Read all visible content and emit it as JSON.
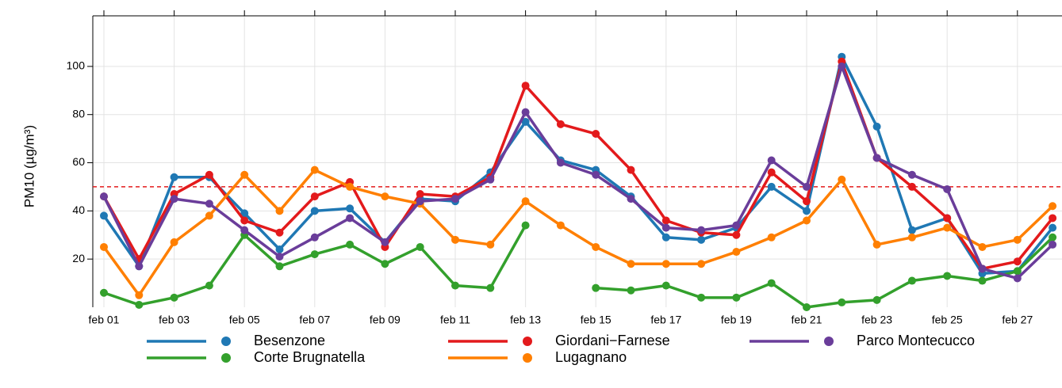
{
  "chart_data": {
    "type": "line",
    "y_label": "PM10 (µg/m³)",
    "categories": [
      "feb 01",
      null,
      "feb 03",
      null,
      "feb 05",
      null,
      "feb 07",
      null,
      "feb 09",
      null,
      "feb 11",
      null,
      "feb 13",
      null,
      "feb 15",
      null,
      "feb 17",
      null,
      "feb 19",
      null,
      "feb 21",
      null,
      "feb 23",
      null,
      "feb 25",
      null,
      "feb 27",
      null
    ],
    "series": [
      {
        "name": "Besenzone",
        "color": "#1f78b4",
        "values": [
          38,
          17,
          54,
          54,
          39,
          24,
          40,
          41,
          27,
          45,
          44,
          56,
          77,
          61,
          57,
          46,
          29,
          28,
          33,
          50,
          40,
          104,
          75,
          32,
          37,
          14,
          15,
          33
        ]
      },
      {
        "name": "Corte Brugnatella",
        "color": "#33a02c",
        "values": [
          6,
          1,
          4,
          9,
          30,
          17,
          22,
          26,
          18,
          25,
          9,
          8,
          34,
          null,
          8,
          7,
          9,
          4,
          4,
          10,
          0,
          2,
          3,
          11,
          13,
          11,
          15,
          29
        ]
      },
      {
        "name": "Giordani−Farnese",
        "color": "#e31a1c",
        "values": [
          46,
          20,
          47,
          55,
          36,
          31,
          46,
          52,
          25,
          47,
          46,
          54,
          92,
          76,
          72,
          57,
          36,
          31,
          30,
          56,
          44,
          102,
          62,
          50,
          37,
          16,
          19,
          37
        ]
      },
      {
        "name": "Lugagnano",
        "color": "#ff7f00",
        "values": [
          25,
          5,
          27,
          38,
          55,
          40,
          57,
          50,
          46,
          43,
          28,
          26,
          44,
          34,
          25,
          18,
          18,
          18,
          23,
          29,
          36,
          53,
          26,
          29,
          33,
          25,
          28,
          42
        ]
      },
      {
        "name": "Parco Montecucco",
        "color": "#6a3d9a",
        "values": [
          46,
          17,
          45,
          43,
          32,
          21,
          29,
          37,
          27,
          44,
          45,
          53,
          81,
          60,
          55,
          45,
          33,
          32,
          34,
          61,
          50,
          100,
          62,
          55,
          49,
          16,
          12,
          26
        ]
      }
    ],
    "threshold": {
      "value": 50,
      "color": "#e41a1c"
    },
    "ylim": [
      0,
      121
    ],
    "yticks": [
      20,
      40,
      60,
      80,
      100
    ],
    "grid": true
  }
}
